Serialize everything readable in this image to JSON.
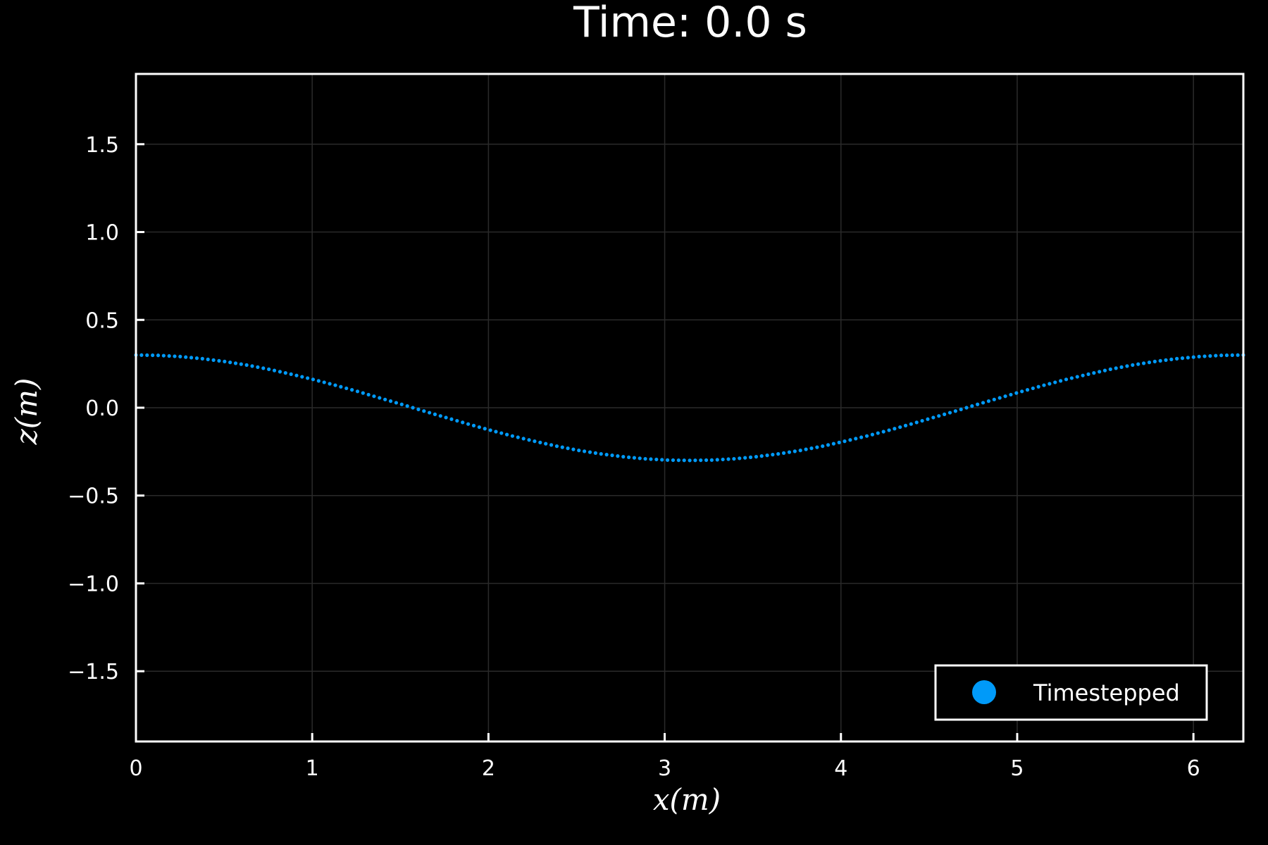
{
  "colors": {
    "background": "#000000",
    "foreground": "#ffffff",
    "grid": "#2a2a2a",
    "series": "#009af9"
  },
  "chart_data": {
    "type": "scatter",
    "title": "Time: 0.0 s",
    "xlabel": "x(m)",
    "ylabel": "z(m)",
    "xlim": [
      0,
      6.2832
    ],
    "ylim": [
      -1.9,
      1.9
    ],
    "xticks": [
      0,
      1,
      2,
      3,
      4,
      5,
      6
    ],
    "xtick_labels": [
      "0",
      "1",
      "2",
      "3",
      "4",
      "5",
      "6"
    ],
    "yticks": [
      -1.5,
      -1.0,
      -0.5,
      0.0,
      0.5,
      1.0,
      1.5
    ],
    "ytick_labels": [
      "−1.5",
      "−1.0",
      "−0.5",
      "0.0",
      "0.5",
      "1.0",
      "1.5"
    ],
    "grid": true,
    "legend_position": "bottom-right",
    "series": [
      {
        "name": "Timestepped",
        "x": [
          0.0,
          0.126,
          0.251,
          0.377,
          0.503,
          0.628,
          0.754,
          0.88,
          1.005,
          1.131,
          1.257,
          1.382,
          1.508,
          1.634,
          1.759,
          1.885,
          2.011,
          2.136,
          2.262,
          2.388,
          2.513,
          2.639,
          2.765,
          2.89,
          3.016,
          3.142,
          3.267,
          3.393,
          3.519,
          3.644,
          3.77,
          3.896,
          4.021,
          4.147,
          4.273,
          4.398,
          4.524,
          4.65,
          4.775,
          4.901,
          5.027,
          5.152,
          5.278,
          5.404,
          5.529,
          5.655,
          5.781,
          5.906,
          6.032,
          6.158,
          6.283
        ],
        "y": [
          0.3,
          0.298,
          0.291,
          0.279,
          0.263,
          0.243,
          0.219,
          0.191,
          0.161,
          0.128,
          0.093,
          0.056,
          0.019,
          -0.019,
          -0.056,
          -0.093,
          -0.128,
          -0.161,
          -0.191,
          -0.219,
          -0.243,
          -0.263,
          -0.279,
          -0.291,
          -0.298,
          -0.3,
          -0.298,
          -0.291,
          -0.279,
          -0.263,
          -0.243,
          -0.219,
          -0.191,
          -0.161,
          -0.128,
          -0.093,
          -0.056,
          -0.019,
          0.019,
          0.056,
          0.093,
          0.128,
          0.161,
          0.191,
          0.219,
          0.243,
          0.263,
          0.279,
          0.291,
          0.298,
          0.3
        ]
      }
    ]
  }
}
